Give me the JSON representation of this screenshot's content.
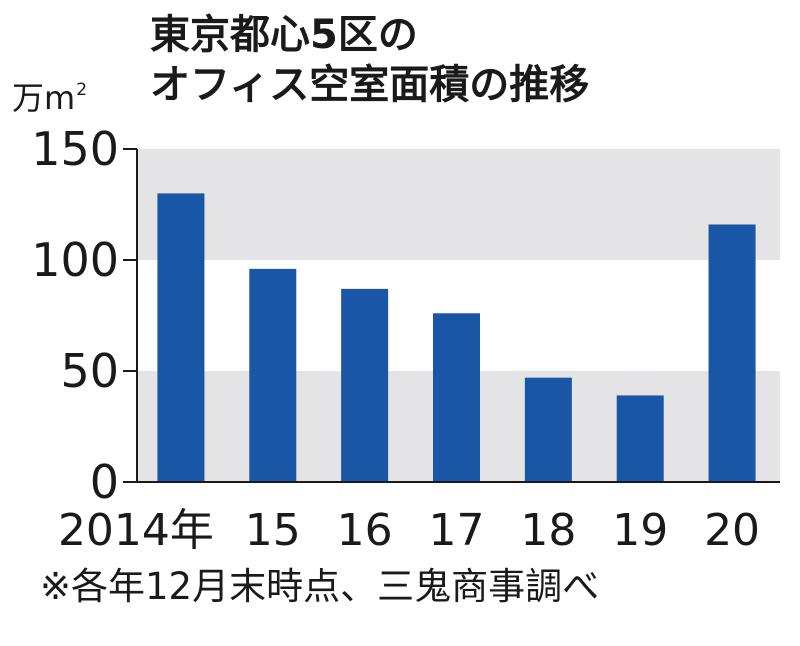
{
  "chart_data": {
    "type": "bar",
    "title_line1": "東京都心5区の",
    "title_line2": "オフィス空室面積の推移",
    "unit": "万m",
    "unit_superscript": "2",
    "categories": [
      "2014年",
      "15",
      "16",
      "17",
      "18",
      "19",
      "20"
    ],
    "values": [
      130,
      96,
      87,
      76,
      47,
      39,
      116
    ],
    "yticks": [
      0,
      50,
      100,
      150
    ],
    "ylim": [
      0,
      150
    ],
    "bar_color": "#1a56a6",
    "band_color": "#e4e4e6",
    "grid": false,
    "note": "※各年12月末時点、三鬼商事調べ"
  }
}
